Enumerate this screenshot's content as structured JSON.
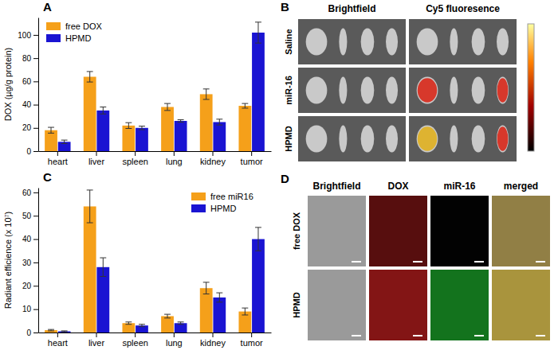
{
  "chart_data": [
    {
      "type": "bar",
      "annotations": [
        "A"
      ],
      "y_label": "DOX (µg/g protein)",
      "categories": [
        "heart",
        "liver",
        "spleen",
        "lung",
        "kidney",
        "tumor"
      ],
      "series": [
        {
          "name": "free DOX",
          "color": "#f5a01a",
          "values": [
            18,
            64,
            22,
            38,
            49,
            39
          ],
          "errors": [
            2.5,
            4.5,
            2.5,
            3,
            4.5,
            2
          ]
        },
        {
          "name": "HPMD",
          "color": "#1a14d2",
          "values": [
            8,
            35,
            20,
            26,
            25,
            102
          ],
          "errors": [
            1.5,
            3,
            1.5,
            1,
            2.5,
            9
          ]
        }
      ],
      "ylim": [
        0,
        115
      ],
      "yticks": [
        0,
        20,
        40,
        60,
        80,
        100
      ],
      "legend": "upper left"
    },
    {
      "type": "bar",
      "annotations": [
        "C"
      ],
      "y_label": "Radiant efficience (x 10⁷)",
      "categories": [
        "heart",
        "liver",
        "spleen",
        "lung",
        "kidney",
        "tumor"
      ],
      "series": [
        {
          "name": "free miR16",
          "color": "#f5a01a",
          "values": [
            1,
            54,
            4,
            7,
            19,
            9
          ],
          "errors": [
            0.3,
            7,
            0.5,
            0.8,
            2.5,
            1.5
          ]
        },
        {
          "name": "HPMD",
          "color": "#1a14d2",
          "values": [
            0.5,
            28,
            3,
            4,
            15,
            40
          ],
          "errors": [
            0.2,
            4,
            0.5,
            0.5,
            2,
            5
          ]
        }
      ],
      "ylim": [
        0,
        62
      ],
      "yticks": [
        0,
        10,
        20,
        30,
        40,
        50,
        60
      ],
      "legend": "upper right"
    }
  ],
  "image_panels": [
    {
      "label": "B",
      "columns": [
        "Brightfield",
        "Cy5 fluoresence"
      ],
      "rows": [
        "Saline",
        "miR-16",
        "HPMD"
      ]
    },
    {
      "label": "D",
      "columns": [
        "Brightfield",
        "DOX",
        "miR-16",
        "merged"
      ],
      "rows": [
        "free DOX",
        "HPMD"
      ]
    }
  ]
}
